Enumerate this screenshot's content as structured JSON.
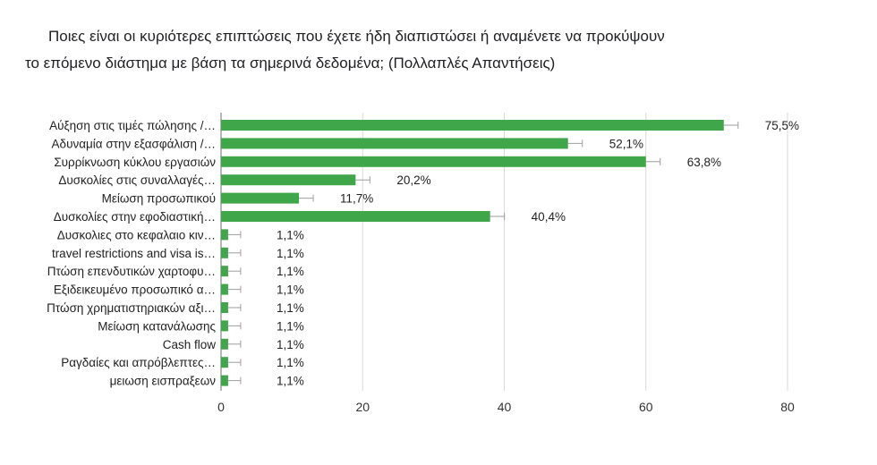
{
  "title": {
    "line1": "Ποιες είναι οι κυριότερες επιπτώσεις που έχετε ήδη διαπιστώσει ή αναμένετε να προκύψουν",
    "line2": "το επόμενο διάστημα με βάση τα σημερινά δεδομένα; (Πολλαπλές Απαντήσεις)"
  },
  "colors": {
    "bar": "#3fa74a",
    "grid": "#d9d9d9",
    "axis": "#9e9e9e",
    "error": "#9e9e9e",
    "text": "#222222"
  },
  "chart_data": {
    "type": "bar",
    "orientation": "horizontal",
    "categories": [
      "Αύξηση στις τιμές πώλησης /…",
      "Αδυναμία στην εξασφάλιση /…",
      "Συρρίκνωση κύκλου εργασιών",
      "Δυσκολίες στις συναλλαγές…",
      "Μείωση προσωπικού",
      "Δυσκολίες στην εφοδιαστική…",
      "Δυσκολιες στο κεφαλαιο κιν…",
      "travel restrictions and visa is…",
      "Πτώση επενδυτικών χαρτοφυ…",
      "Εξιδεικευμένο προσωπικό α…",
      "Πτώση χρηματιστηριακών αξι…",
      "Μείωση κατανάλωσης",
      "Cash flow",
      "Ραγδαίες και απρόβλεπτες…",
      "μειωση εισπραξεων"
    ],
    "values": [
      71,
      49,
      60,
      19,
      11,
      38,
      1,
      1,
      1,
      1,
      1,
      1,
      1,
      1,
      1
    ],
    "data_labels": [
      "75,5%",
      "52,1%",
      "63,8%",
      "20,2%",
      "11,7%",
      "40,4%",
      "1,1%",
      "1,1%",
      "1,1%",
      "1,1%",
      "1,1%",
      "1,1%",
      "1,1%",
      "1,1%",
      "1,1%"
    ],
    "xlim": [
      0,
      80
    ],
    "xticks": [
      "0",
      "20",
      "40",
      "60",
      "80"
    ],
    "grid": "vertical",
    "legend": "none",
    "xlabel": "",
    "ylabel": ""
  }
}
